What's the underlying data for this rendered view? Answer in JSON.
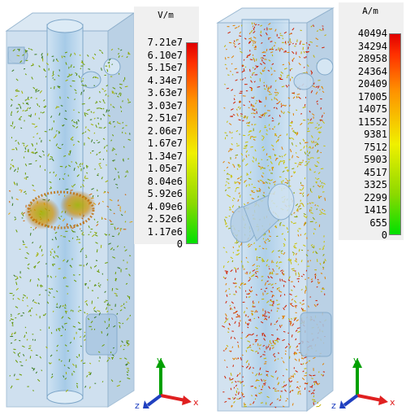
{
  "left_view": {
    "legend": {
      "unit": "V/m",
      "ticks": [
        "7.21e7",
        "6.10e7",
        "5.15e7",
        "4.34e7",
        "3.63e7",
        "3.03e7",
        "2.51e7",
        "2.06e7",
        "1.67e7",
        "1.34e7",
        "1.05e7",
        "8.04e6",
        "5.92e6",
        "4.09e6",
        "2.52e6",
        "1.17e6",
        "0"
      ]
    },
    "axes": {
      "x": "x",
      "y": "y",
      "z": "z"
    }
  },
  "right_view": {
    "legend": {
      "unit": "A/m",
      "ticks": [
        "40494",
        "34294",
        "28958",
        "24364",
        "20409",
        "17005",
        "14075",
        "11552",
        "9381",
        "7512",
        "5903",
        "4517",
        "3325",
        "2299",
        "1415",
        "655",
        "0"
      ]
    },
    "axes": {
      "x": "x",
      "y": "y",
      "z": "z"
    }
  },
  "colors": {
    "legend_gradient": [
      "#00e000",
      "#f0f000",
      "#ff9000",
      "#e00000"
    ],
    "model_fill": "#b8d0e6",
    "model_edge": "#8fb0cc"
  }
}
